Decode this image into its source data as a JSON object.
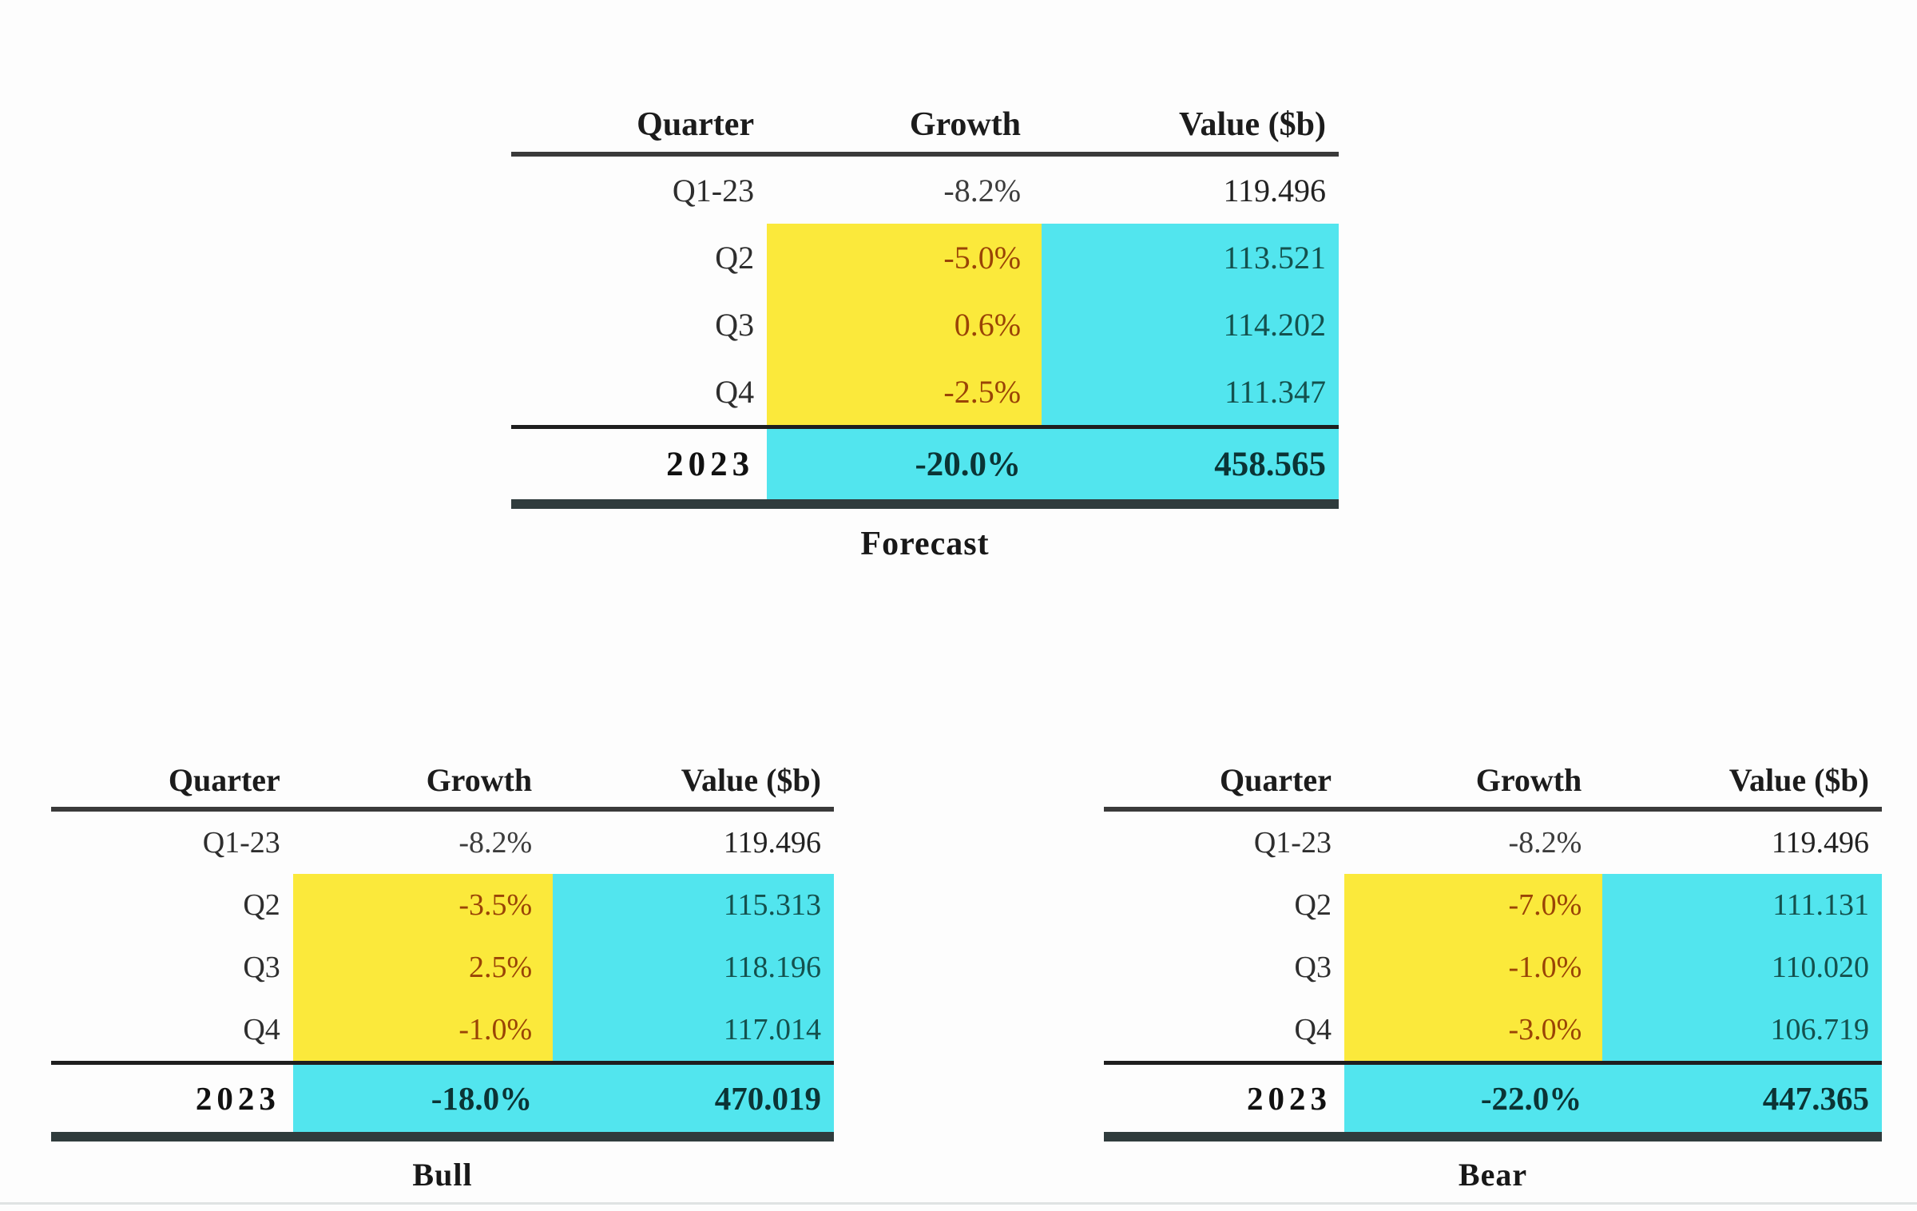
{
  "colors": {
    "highlight-yellow": "#FBE93B",
    "highlight-cyan": "#52E5EE",
    "growth-text": "#9A4406",
    "value-text": "#14514E",
    "total-text": "#0B3435",
    "ink": "#1C1C1C",
    "rule": "#3A3A3A",
    "bottom-band": "#303C3D"
  },
  "tables": [
    {
      "caption": "Forecast",
      "headers": {
        "quarter": "Quarter",
        "growth": "Growth",
        "value": "Value ($b)"
      },
      "rows": [
        {
          "quarter": "Q1-23",
          "growth": "-8.2%",
          "value": "119.496"
        },
        {
          "quarter": "Q2",
          "growth": "-5.0%",
          "value": "113.521"
        },
        {
          "quarter": "Q3",
          "growth": "0.6%",
          "value": "114.202"
        },
        {
          "quarter": "Q4",
          "growth": "-2.5%",
          "value": "111.347"
        }
      ],
      "total": {
        "quarter": "2023",
        "growth": "-20.0%",
        "value": "458.565"
      }
    },
    {
      "caption": "Bull",
      "headers": {
        "quarter": "Quarter",
        "growth": "Growth",
        "value": "Value ($b)"
      },
      "rows": [
        {
          "quarter": "Q1-23",
          "growth": "-8.2%",
          "value": "119.496"
        },
        {
          "quarter": "Q2",
          "growth": "-3.5%",
          "value": "115.313"
        },
        {
          "quarter": "Q3",
          "growth": "2.5%",
          "value": "118.196"
        },
        {
          "quarter": "Q4",
          "growth": "-1.0%",
          "value": "117.014"
        }
      ],
      "total": {
        "quarter": "2023",
        "growth": "-18.0%",
        "value": "470.019"
      }
    },
    {
      "caption": "Bear",
      "headers": {
        "quarter": "Quarter",
        "growth": "Growth",
        "value": "Value ($b)"
      },
      "rows": [
        {
          "quarter": "Q1-23",
          "growth": "-8.2%",
          "value": "119.496"
        },
        {
          "quarter": "Q2",
          "growth": "-7.0%",
          "value": "111.131"
        },
        {
          "quarter": "Q3",
          "growth": "-1.0%",
          "value": "110.020"
        },
        {
          "quarter": "Q4",
          "growth": "-3.0%",
          "value": "106.719"
        }
      ],
      "total": {
        "quarter": "2023",
        "growth": "-22.0%",
        "value": "447.365"
      }
    }
  ]
}
